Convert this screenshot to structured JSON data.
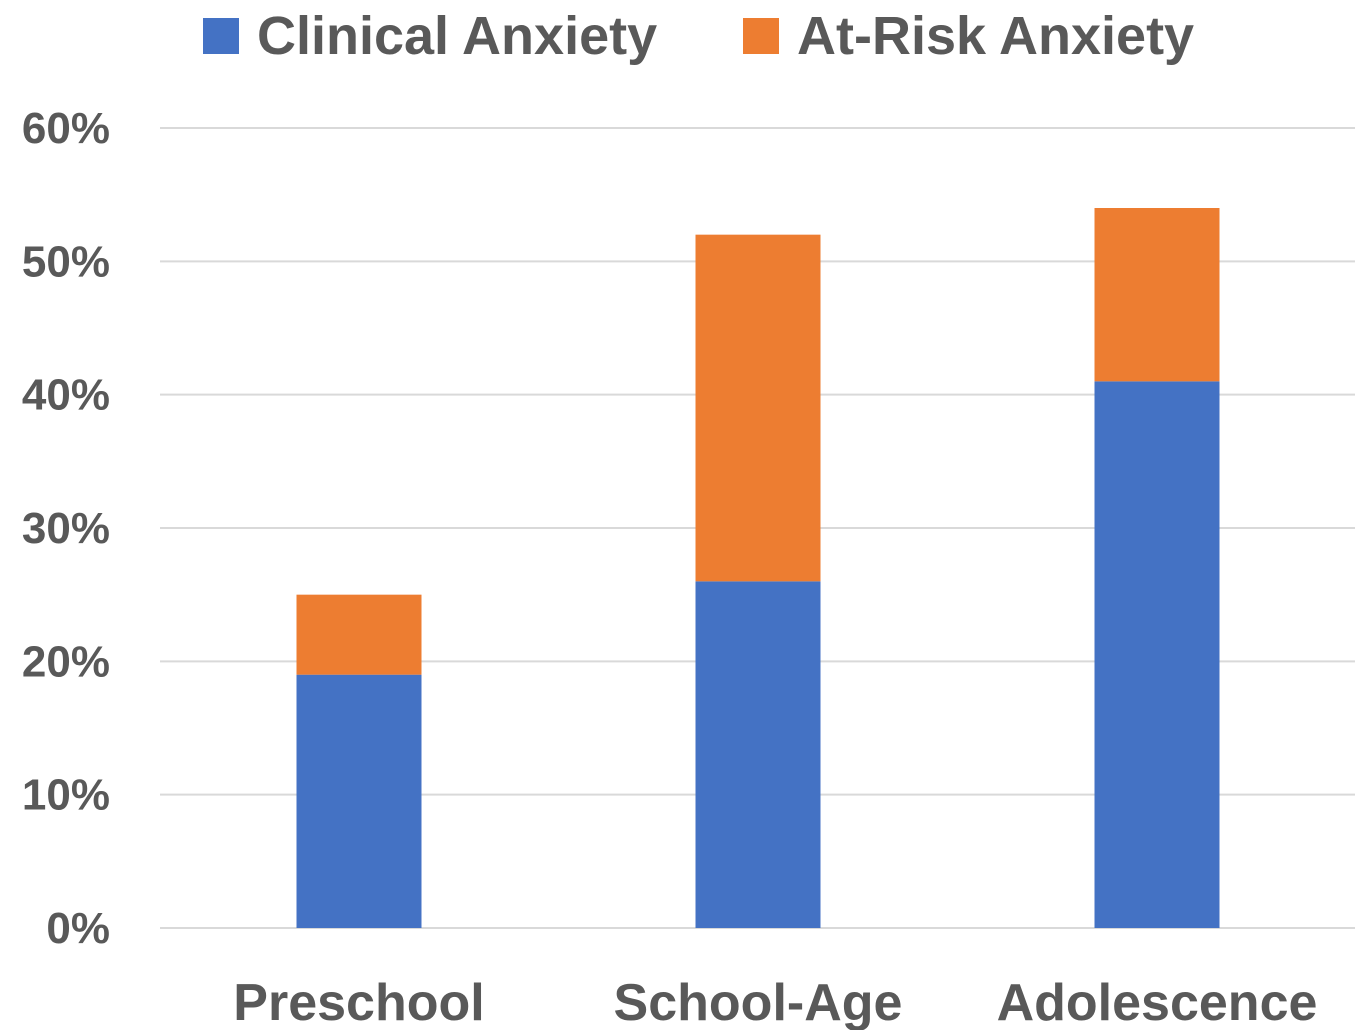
{
  "chart_data": {
    "type": "bar",
    "stacked": true,
    "categories": [
      "Preschool",
      "School-Age",
      "Adolescence"
    ],
    "series": [
      {
        "name": "Clinical Anxiety",
        "color": "#4472C4",
        "values": [
          0.19,
          0.26,
          0.41
        ]
      },
      {
        "name": "At-Risk Anxiety",
        "color": "#ED7D31",
        "values": [
          0.06,
          0.26,
          0.13
        ]
      }
    ],
    "yticks": [
      "0%",
      "10%",
      "20%",
      "30%",
      "40%",
      "50%",
      "60%"
    ],
    "ylim": [
      0,
      0.6
    ],
    "grid": true,
    "legend_position": "top",
    "grid_color": "#D9D9D9",
    "text_color": "#595959"
  }
}
